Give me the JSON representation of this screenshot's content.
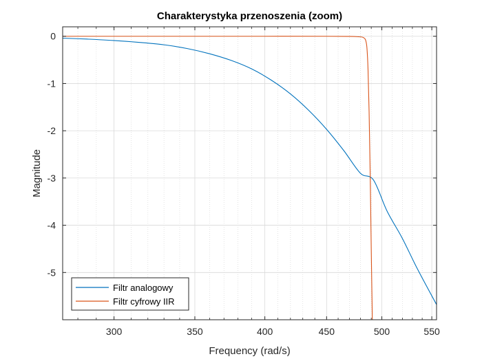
{
  "chart_data": {
    "type": "line",
    "title": "Charakterystyka przenoszenia (zoom)",
    "xlabel": "Frequency (rad/s)",
    "ylabel": "Magnitude",
    "x_scale": "log",
    "xlim": [
      272,
      555
    ],
    "ylim": [
      -6.0,
      0.2
    ],
    "grid": true,
    "minor_grid": true,
    "legend_location": "bottom-left",
    "x_ticks": [
      300,
      350,
      400,
      450,
      500,
      550
    ],
    "x_tick_labels": [
      "300",
      "350",
      "400",
      "450",
      "500",
      "550"
    ],
    "y_ticks": [
      0,
      -1,
      -2,
      -3,
      -4,
      -5
    ],
    "y_tick_labels": [
      "0",
      "-1",
      "-2",
      "-3",
      "-4",
      "-5"
    ],
    "series": [
      {
        "name": "Filtr analogowy",
        "color": "#0072BD",
        "x": [
          272,
          285,
          300,
          315,
          330,
          345,
          360,
          375,
          390,
          405,
          420,
          435,
          450,
          465,
          480,
          492,
          505,
          520,
          535,
          555
        ],
        "y": [
          -0.04,
          -0.06,
          -0.09,
          -0.13,
          -0.18,
          -0.26,
          -0.37,
          -0.51,
          -0.69,
          -0.93,
          -1.22,
          -1.57,
          -1.97,
          -2.42,
          -2.9,
          -3.04,
          -3.7,
          -4.28,
          -4.92,
          -5.68
        ]
      },
      {
        "name": "Filtr cyfrowy IIR",
        "color": "#D95319",
        "x": [
          272,
          300,
          350,
          400,
          450,
          470,
          478,
          482,
          484,
          485,
          486,
          487,
          488,
          489,
          490,
          491
        ],
        "y": [
          0,
          0,
          0,
          0,
          0,
          -0.003,
          -0.01,
          -0.02,
          -0.05,
          -0.1,
          -0.25,
          -0.7,
          -1.6,
          -2.9,
          -4.5,
          -6.0
        ]
      }
    ]
  }
}
